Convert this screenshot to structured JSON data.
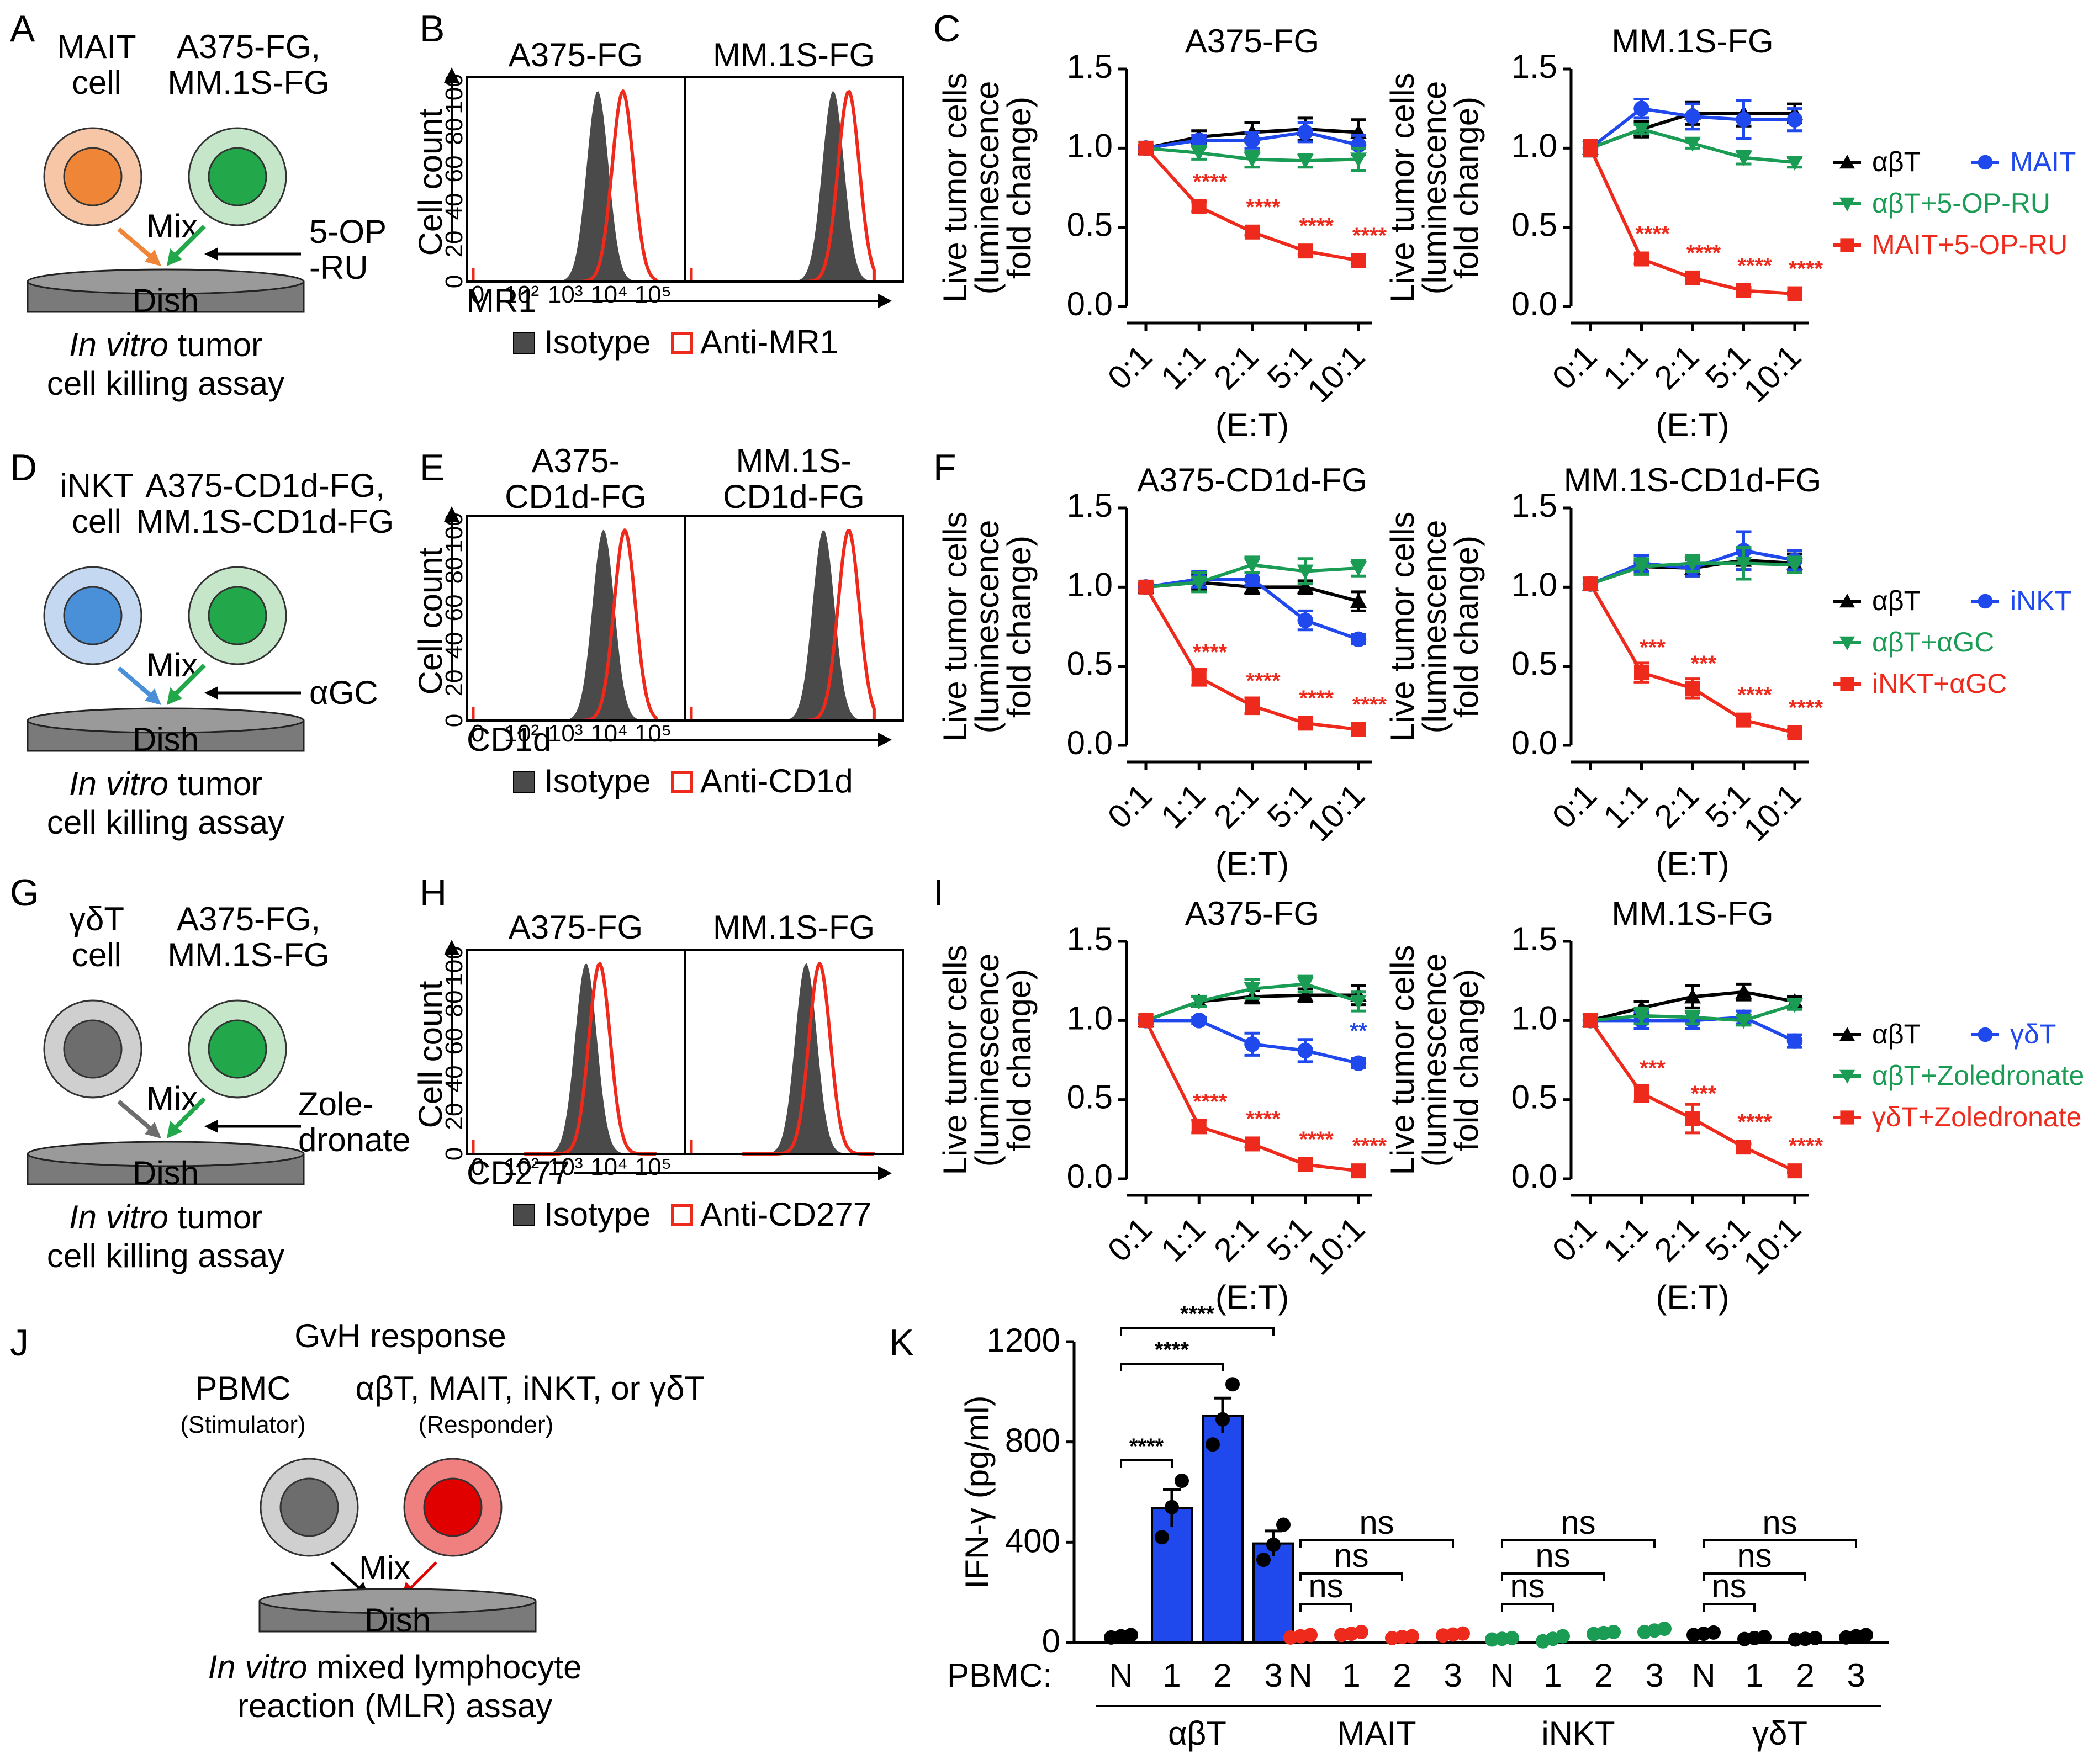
{
  "colors": {
    "abT": "#000000",
    "innate": "#1f49ec",
    "abT_ag": "#1a9c55",
    "innate_ag": "#ee2a1c",
    "mait_cell": "#ef8536",
    "inkt_cell": "#4a90d9",
    "gdT_cell": "#6d6d6d",
    "target_cell": "#22a84a",
    "isotype": "#4a4a4a",
    "anti": "#ee2a1c"
  },
  "panel_letters": [
    "A",
    "B",
    "C",
    "D",
    "E",
    "F",
    "G",
    "H",
    "I",
    "J",
    "K"
  ],
  "schematics": [
    {
      "id": "A",
      "effector": [
        "MAIT",
        "cell"
      ],
      "target": [
        "A375-FG,",
        "MM.1S-FG"
      ],
      "agent": [
        "5-OP",
        "-RU"
      ],
      "mix": "Mix",
      "dish": "Dish",
      "assay_prefix": "In vitro",
      "assay_line1": "tumor",
      "assay_line2": "cell killing assay"
    },
    {
      "id": "D",
      "effector": [
        "iNKT",
        "cell"
      ],
      "target": [
        "A375-CD1d-FG,",
        "MM.1S-CD1d-FG"
      ],
      "agent": [
        "αGC"
      ],
      "mix": "Mix",
      "dish": "Dish",
      "assay_prefix": "In vitro",
      "assay_line1": "tumor",
      "assay_line2": "cell killing assay"
    },
    {
      "id": "G",
      "effector": [
        "γδT",
        "cell"
      ],
      "target": [
        "A375-FG,",
        "MM.1S-FG"
      ],
      "agent": [
        "Zole-",
        "dronate"
      ],
      "mix": "Mix",
      "dish": "Dish",
      "assay_prefix": "In vitro",
      "assay_line1": "tumor",
      "assay_line2": "cell killing assay"
    }
  ],
  "histograms": [
    {
      "id": "B",
      "titles": [
        "A375-FG",
        "MM.1S-FG"
      ],
      "marker": "MR1",
      "ylabel": "Cell count",
      "yticks": [
        "0",
        "20",
        "40",
        "60",
        "80",
        "100"
      ],
      "xticks": [
        "0",
        "10²",
        "10³",
        "10⁴",
        "10⁵"
      ],
      "legend": [
        "Isotype",
        "Anti-MR1"
      ],
      "iso_peak": [
        3.1,
        3.55
      ],
      "anti_peak": [
        3.75,
        3.95
      ]
    },
    {
      "id": "E",
      "titles": [
        "A375-\nCD1d-FG",
        "MM.1S-\nCD1d-FG"
      ],
      "marker": "CD1d",
      "ylabel": "Cell count",
      "yticks": [
        "0",
        "20",
        "40",
        "60",
        "80",
        "100"
      ],
      "xticks": [
        "0",
        "10²",
        "10³",
        "10⁴",
        "10⁵"
      ],
      "legend": [
        "Isotype",
        "Anti-CD1d"
      ],
      "iso_peak": [
        3.25,
        3.3
      ],
      "anti_peak": [
        3.8,
        3.95
      ]
    },
    {
      "id": "H",
      "titles": [
        "A375-FG",
        "MM.1S-FG"
      ],
      "marker": "CD277",
      "ylabel": "Cell count",
      "yticks": [
        "0",
        "20",
        "40",
        "60",
        "80",
        "100"
      ],
      "xticks": [
        "0",
        "10²",
        "10³",
        "10⁴",
        "10⁵"
      ],
      "legend": [
        "Isotype",
        "Anti-CD277"
      ],
      "iso_peak": [
        2.8,
        2.85
      ],
      "anti_peak": [
        3.15,
        3.2
      ]
    }
  ],
  "chart_data": [
    {
      "panel": "C",
      "type": "line",
      "title": "A375-FG",
      "xlabel": "(E:T)",
      "ylabel": "Live tumor cells (luminescence fold change)",
      "categories": [
        "0:1",
        "1:1",
        "2:1",
        "5:1",
        "10:1"
      ],
      "ylim": [
        0,
        1.5
      ],
      "yticks": [
        "0.0",
        "0.5",
        "1.0",
        "1.5"
      ],
      "series": [
        {
          "name": "αβT",
          "values": [
            1.0,
            1.07,
            1.1,
            1.12,
            1.1
          ],
          "err": [
            0.02,
            0.04,
            0.06,
            0.07,
            0.08
          ]
        },
        {
          "name": "MAIT",
          "values": [
            1.0,
            1.05,
            1.05,
            1.1,
            1.02
          ],
          "err": [
            0.02,
            0.03,
            0.05,
            0.06,
            0.06
          ]
        },
        {
          "name": "αβT+5-OP-RU",
          "values": [
            1.0,
            0.97,
            0.93,
            0.92,
            0.93
          ],
          "err": [
            0.02,
            0.04,
            0.05,
            0.04,
            0.07
          ]
        },
        {
          "name": "MAIT+5-OP-RU",
          "values": [
            1.0,
            0.63,
            0.47,
            0.35,
            0.29
          ],
          "err": [
            0.02,
            0.03,
            0.02,
            0.02,
            0.02
          ]
        }
      ],
      "significance": [
        "",
        "****",
        "****",
        "****",
        "****"
      ],
      "sig_series": "MAIT+5-OP-RU"
    },
    {
      "panel": "C",
      "type": "line",
      "title": "MM.1S-FG",
      "xlabel": "(E:T)",
      "ylabel": "Live tumor cells (luminescence fold change)",
      "categories": [
        "0:1",
        "1:1",
        "2:1",
        "5:1",
        "10:1"
      ],
      "ylim": [
        0,
        1.5
      ],
      "yticks": [
        "0.0",
        "0.5",
        "1.0",
        "1.5"
      ],
      "series": [
        {
          "name": "αβT",
          "values": [
            1.0,
            1.12,
            1.22,
            1.22,
            1.22
          ],
          "err": [
            0.05,
            0.05,
            0.07,
            0.08,
            0.06
          ]
        },
        {
          "name": "MAIT",
          "values": [
            1.0,
            1.25,
            1.2,
            1.18,
            1.18
          ],
          "err": [
            0.05,
            0.06,
            0.08,
            0.12,
            0.07
          ]
        },
        {
          "name": "αβT+5-OP-RU",
          "values": [
            1.0,
            1.12,
            1.03,
            0.94,
            0.91
          ],
          "err": [
            0.05,
            0.03,
            0.03,
            0.04,
            0.03
          ]
        },
        {
          "name": "MAIT+5-OP-RU",
          "values": [
            1.0,
            0.3,
            0.18,
            0.1,
            0.08
          ],
          "err": [
            0.05,
            0.03,
            0.03,
            0.02,
            0.01
          ]
        }
      ],
      "significance": [
        "",
        "****",
        "****",
        "****",
        "****"
      ],
      "sig_series": "MAIT+5-OP-RU"
    },
    {
      "panel": "F",
      "type": "line",
      "title": "A375-CD1d-FG",
      "xlabel": "(E:T)",
      "ylabel": "Live tumor cells (luminescence fold change)",
      "categories": [
        "0:1",
        "1:1",
        "2:1",
        "5:1",
        "10:1"
      ],
      "ylim": [
        0,
        1.5
      ],
      "yticks": [
        "0.0",
        "0.5",
        "1.0",
        "1.5"
      ],
      "series": [
        {
          "name": "αβT",
          "values": [
            1.0,
            1.03,
            1.0,
            1.0,
            0.91
          ],
          "err": [
            0.02,
            0.05,
            0.04,
            0.04,
            0.06
          ]
        },
        {
          "name": "iNKT",
          "values": [
            1.0,
            1.05,
            1.05,
            0.79,
            0.67
          ],
          "err": [
            0.02,
            0.05,
            0.04,
            0.06,
            0.03
          ]
        },
        {
          "name": "αβT+αGC",
          "values": [
            1.0,
            1.03,
            1.14,
            1.1,
            1.12
          ],
          "err": [
            0.02,
            0.06,
            0.05,
            0.08,
            0.05
          ]
        },
        {
          "name": "iNKT+αGC",
          "values": [
            1.0,
            0.43,
            0.25,
            0.14,
            0.1
          ],
          "err": [
            0.02,
            0.05,
            0.05,
            0.02,
            0.02
          ]
        }
      ],
      "significance": [
        "",
        "****",
        "****",
        "****",
        "****"
      ],
      "sig_series": "iNKT+αGC"
    },
    {
      "panel": "F",
      "type": "line",
      "title": "MM.1S-CD1d-FG",
      "xlabel": "(E:T)",
      "ylabel": "Live tumor cells (luminescence fold change)",
      "categories": [
        "0:1",
        "1:1",
        "2:1",
        "5:1",
        "10:1"
      ],
      "ylim": [
        0,
        1.5
      ],
      "yticks": [
        "0.0",
        "0.5",
        "1.0",
        "1.5"
      ],
      "series": [
        {
          "name": "αβT",
          "values": [
            1.02,
            1.13,
            1.12,
            1.17,
            1.15
          ],
          "err": [
            0.02,
            0.04,
            0.05,
            0.06,
            0.06
          ]
        },
        {
          "name": "iNKT",
          "values": [
            1.02,
            1.15,
            1.12,
            1.23,
            1.17
          ],
          "err": [
            0.02,
            0.05,
            0.05,
            0.12,
            0.06
          ]
        },
        {
          "name": "αβT+αGC",
          "values": [
            1.02,
            1.13,
            1.15,
            1.15,
            1.14
          ],
          "err": [
            0.02,
            0.05,
            0.05,
            0.1,
            0.05
          ]
        },
        {
          "name": "iNKT+αGC",
          "values": [
            1.02,
            0.46,
            0.36,
            0.16,
            0.08
          ],
          "err": [
            0.02,
            0.06,
            0.06,
            0.02,
            0.02
          ]
        }
      ],
      "significance": [
        "",
        "***",
        "***",
        "****",
        "****"
      ],
      "sig_series": "iNKT+αGC"
    },
    {
      "panel": "I",
      "type": "line",
      "title": "A375-FG",
      "xlabel": "(E:T)",
      "ylabel": "Live tumor cells (luminescence fold change)",
      "categories": [
        "0:1",
        "1:1",
        "2:1",
        "5:1",
        "10:1"
      ],
      "ylim": [
        0,
        1.5
      ],
      "yticks": [
        "0.0",
        "0.5",
        "1.0",
        "1.5"
      ],
      "series": [
        {
          "name": "αβT",
          "values": [
            1.0,
            1.12,
            1.15,
            1.16,
            1.16
          ],
          "err": [
            0.02,
            0.03,
            0.04,
            0.04,
            0.06
          ]
        },
        {
          "name": "γδT",
          "values": [
            1.0,
            1.0,
            0.85,
            0.81,
            0.73
          ],
          "err": [
            0.02,
            0.02,
            0.07,
            0.07,
            0.03
          ]
        },
        {
          "name": "αβT+Zoledronate",
          "values": [
            1.0,
            1.12,
            1.2,
            1.23,
            1.12
          ],
          "err": [
            0.02,
            0.03,
            0.06,
            0.05,
            0.06
          ]
        },
        {
          "name": "γδT+Zoledronate",
          "values": [
            1.0,
            0.33,
            0.22,
            0.09,
            0.05
          ],
          "err": [
            0.02,
            0.04,
            0.02,
            0.01,
            0.01
          ]
        }
      ],
      "significance": [
        "",
        "****",
        "****",
        "****",
        "****"
      ],
      "sig_series": "γδT+Zoledronate",
      "extra_significance": [
        {
          "series": "γδT",
          "index": 4,
          "label": "**"
        }
      ]
    },
    {
      "panel": "I",
      "type": "line",
      "title": "MM.1S-FG",
      "xlabel": "(E:T)",
      "ylabel": "Live tumor cells (luminescence fold change)",
      "categories": [
        "0:1",
        "1:1",
        "2:1",
        "5:1",
        "10:1"
      ],
      "ylim": [
        0,
        1.5
      ],
      "yticks": [
        "0.0",
        "0.5",
        "1.0",
        "1.5"
      ],
      "series": [
        {
          "name": "αβT",
          "values": [
            1.0,
            1.08,
            1.15,
            1.18,
            1.12
          ],
          "err": [
            0.02,
            0.04,
            0.07,
            0.05,
            0.03
          ]
        },
        {
          "name": "γδT",
          "values": [
            1.0,
            1.0,
            1.0,
            1.02,
            0.87
          ],
          "err": [
            0.02,
            0.05,
            0.05,
            0.04,
            0.04
          ]
        },
        {
          "name": "αβT+Zoledronate",
          "values": [
            1.0,
            1.03,
            1.02,
            1.0,
            1.1
          ],
          "err": [
            0.02,
            0.05,
            0.04,
            0.03,
            0.03
          ]
        },
        {
          "name": "γδT+Zoledronate",
          "values": [
            1.0,
            0.54,
            0.38,
            0.2,
            0.05
          ],
          "err": [
            0.02,
            0.05,
            0.09,
            0.02,
            0.01
          ]
        }
      ],
      "significance": [
        "",
        "***",
        "***",
        "****",
        "****"
      ],
      "sig_series": "γδT+Zoledronate"
    },
    {
      "panel": "K",
      "type": "bar",
      "ylabel": "IFN-γ (pg/ml)",
      "ylim": [
        0,
        1200
      ],
      "yticks": [
        "0",
        "400",
        "800",
        "1200"
      ],
      "xprefix": "PBMC:",
      "groups": [
        {
          "name": "αβT",
          "color_key": "innate",
          "categories": [
            "N",
            "1",
            "2",
            "3"
          ],
          "values": [
            25,
            535,
            905,
            395
          ],
          "err": [
            5,
            75,
            70,
            50
          ],
          "points": [
            [
              20,
              25,
              30
            ],
            [
              420,
              540,
              645
            ],
            [
              790,
              890,
              1030
            ],
            [
              330,
              390,
              470
            ]
          ]
        },
        {
          "name": "MAIT",
          "color_key": "innate_ag",
          "categories": [
            "N",
            "1",
            "2",
            "3"
          ],
          "values": [
            25,
            35,
            22,
            32
          ],
          "err": [
            3,
            5,
            3,
            4
          ],
          "points": [
            [
              20,
              25,
              30
            ],
            [
              30,
              35,
              42
            ],
            [
              18,
              22,
              25
            ],
            [
              28,
              32,
              36
            ]
          ]
        },
        {
          "name": "iNKT",
          "color_key": "abT_ag",
          "categories": [
            "N",
            "1",
            "2",
            "3"
          ],
          "values": [
            15,
            15,
            38,
            48
          ],
          "err": [
            3,
            5,
            4,
            5
          ],
          "points": [
            [
              12,
              15,
              18
            ],
            [
              5,
              15,
              25
            ],
            [
              34,
              38,
              42
            ],
            [
              42,
              48,
              55
            ]
          ]
        },
        {
          "name": "γδT",
          "color_key": "abT",
          "categories": [
            "N",
            "1",
            "2",
            "3"
          ],
          "values": [
            35,
            18,
            15,
            25
          ],
          "err": [
            4,
            3,
            3,
            4
          ],
          "points": [
            [
              30,
              35,
              40
            ],
            [
              14,
              18,
              22
            ],
            [
              12,
              15,
              18
            ],
            [
              20,
              25,
              30
            ]
          ]
        }
      ],
      "comparisons": [
        {
          "group": 0,
          "from": 0,
          "to": 1,
          "label": "****"
        },
        {
          "group": 0,
          "from": 0,
          "to": 2,
          "label": "****"
        },
        {
          "group": 0,
          "from": 0,
          "to": 3,
          "label": "****"
        },
        {
          "group": 1,
          "from": 0,
          "to": 1,
          "label": "ns"
        },
        {
          "group": 1,
          "from": 0,
          "to": 2,
          "label": "ns"
        },
        {
          "group": 1,
          "from": 0,
          "to": 3,
          "label": "ns"
        },
        {
          "group": 2,
          "from": 0,
          "to": 1,
          "label": "ns"
        },
        {
          "group": 2,
          "from": 0,
          "to": 2,
          "label": "ns"
        },
        {
          "group": 2,
          "from": 0,
          "to": 3,
          "label": "ns"
        },
        {
          "group": 3,
          "from": 0,
          "to": 1,
          "label": "ns"
        },
        {
          "group": 3,
          "from": 0,
          "to": 2,
          "label": "ns"
        },
        {
          "group": 3,
          "from": 0,
          "to": 3,
          "label": "ns"
        }
      ]
    }
  ],
  "legends": [
    {
      "panel": "C",
      "items": [
        "αβT",
        "MAIT",
        "αβT+5-OP-RU",
        "MAIT+5-OP-RU"
      ]
    },
    {
      "panel": "F",
      "items": [
        "αβT",
        "iNKT",
        "αβT+αGC",
        "iNKT+αGC"
      ]
    },
    {
      "panel": "I",
      "items": [
        "αβT",
        "γδT",
        "αβT+Zoledronate",
        "γδT+Zoledronate"
      ]
    }
  ],
  "panel_j": {
    "title": "GvH response",
    "stimulator": "PBMC",
    "stimulator_sub": "(Stimulator)",
    "responder": "αβT, MAIT, iNKT, or γδT",
    "responder_sub": "(Responder)",
    "mix": "Mix",
    "dish": "Dish",
    "assay_prefix": "In vitro",
    "assay_line1": "mixed lymphocyte",
    "assay_line2": "reaction (MLR) assay"
  }
}
